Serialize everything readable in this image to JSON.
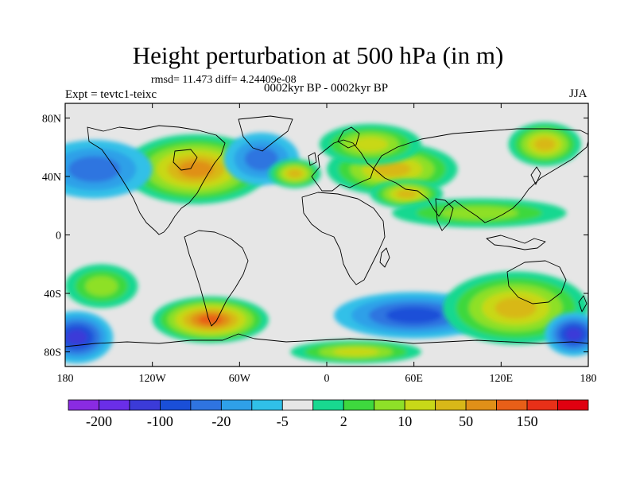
{
  "title": "Height perturbation at 500 hPa (in m)",
  "stats": "rmsd= 11.473 diff= 4.24409e-08",
  "expt": "Expt = tevtc1-teixc",
  "period": "0002kyr BP - 0002kyr BP",
  "season": "JJA",
  "lat_ticks": [
    {
      "label": "80N",
      "lat": 80
    },
    {
      "label": "40N",
      "lat": 40
    },
    {
      "label": "0",
      "lat": 0
    },
    {
      "label": "40S",
      "lat": -40
    },
    {
      "label": "80S",
      "lat": -80
    }
  ],
  "lon_ticks": [
    {
      "label": "180",
      "lon": -180
    },
    {
      "label": "120W",
      "lon": -120
    },
    {
      "label": "60W",
      "lon": -60
    },
    {
      "label": "0",
      "lon": 0
    },
    {
      "label": "60E",
      "lon": 60
    },
    {
      "label": "120E",
      "lon": 120
    },
    {
      "label": "180",
      "lon": 180
    }
  ],
  "colorbar": {
    "colors": [
      "#8a2be2",
      "#6a2ee8",
      "#3b3bd8",
      "#1a4fd8",
      "#2f74e0",
      "#2fa0e8",
      "#30c0e8",
      "#e6e6e6",
      "#18d890",
      "#3ed83e",
      "#8ee028",
      "#c8d818",
      "#d8b818",
      "#e09018",
      "#e85f18",
      "#e83018",
      "#e00010"
    ],
    "labels": [
      {
        "text": "-200",
        "boundary": 1
      },
      {
        "text": "-100",
        "boundary": 3
      },
      {
        "text": "-20",
        "boundary": 5
      },
      {
        "text": "-5",
        "boundary": 7
      },
      {
        "text": "2",
        "boundary": 9
      },
      {
        "text": "10",
        "boundary": 11
      },
      {
        "text": "50",
        "boundary": 13
      },
      {
        "text": "150",
        "boundary": 15
      }
    ]
  },
  "map": {
    "lon_range": [
      -180,
      180
    ],
    "lat_range": [
      -90,
      90
    ],
    "background_color": "#e6e6e6",
    "coastline_color": "#000000",
    "anomalies": [
      {
        "lon": -90,
        "lat": 45,
        "rx": 50,
        "ry": 24,
        "level": 13
      },
      {
        "lon": -45,
        "lat": 52,
        "rx": 26,
        "ry": 18,
        "level": 4
      },
      {
        "lon": -22,
        "lat": 42,
        "rx": 18,
        "ry": 10,
        "level": 12
      },
      {
        "lon": 45,
        "lat": 45,
        "rx": 45,
        "ry": 18,
        "level": 12
      },
      {
        "lon": 30,
        "lat": 62,
        "rx": 35,
        "ry": 14,
        "level": 11
      },
      {
        "lon": 55,
        "lat": 28,
        "rx": 25,
        "ry": 10,
        "level": 12
      },
      {
        "lon": 150,
        "lat": 62,
        "rx": 25,
        "ry": 15,
        "level": 12
      },
      {
        "lon": 105,
        "lat": 15,
        "rx": 60,
        "ry": 10,
        "level": 10
      },
      {
        "lon": -160,
        "lat": 45,
        "rx": 40,
        "ry": 20,
        "level": 4
      },
      {
        "lon": -155,
        "lat": -35,
        "rx": 25,
        "ry": 15,
        "level": 10
      },
      {
        "lon": -80,
        "lat": -58,
        "rx": 40,
        "ry": 16,
        "level": 14
      },
      {
        "lon": -172,
        "lat": -70,
        "rx": 25,
        "ry": 18,
        "level": 2
      },
      {
        "lon": 60,
        "lat": -55,
        "rx": 55,
        "ry": 16,
        "level": 3
      },
      {
        "lon": 130,
        "lat": -50,
        "rx": 50,
        "ry": 25,
        "level": 12
      },
      {
        "lon": 170,
        "lat": -68,
        "rx": 20,
        "ry": 15,
        "level": 2
      },
      {
        "lon": 20,
        "lat": -80,
        "rx": 45,
        "ry": 8,
        "level": 11
      }
    ]
  }
}
